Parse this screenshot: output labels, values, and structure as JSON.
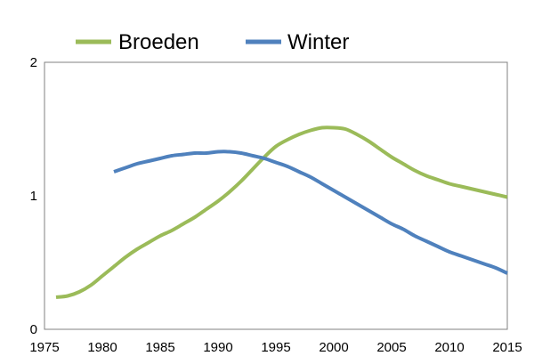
{
  "chart_data": {
    "type": "line",
    "title": "",
    "xlabel": "",
    "ylabel": "",
    "xlim": [
      1975,
      2015
    ],
    "ylim": [
      0,
      2
    ],
    "xticks": [
      1975,
      1980,
      1985,
      1990,
      1995,
      2000,
      2005,
      2010,
      2015
    ],
    "yticks": [
      0,
      1,
      2
    ],
    "grid": false,
    "legend": {
      "position": "top",
      "entries": [
        "Broeden",
        "Winter"
      ]
    },
    "series": [
      {
        "name": "Broeden",
        "color": "#9BBB59",
        "points": [
          [
            1976,
            0.24
          ],
          [
            1977,
            0.25
          ],
          [
            1978,
            0.28
          ],
          [
            1979,
            0.33
          ],
          [
            1980,
            0.4
          ],
          [
            1981,
            0.47
          ],
          [
            1982,
            0.54
          ],
          [
            1983,
            0.6
          ],
          [
            1984,
            0.65
          ],
          [
            1985,
            0.7
          ],
          [
            1986,
            0.74
          ],
          [
            1987,
            0.79
          ],
          [
            1988,
            0.84
          ],
          [
            1989,
            0.9
          ],
          [
            1990,
            0.96
          ],
          [
            1991,
            1.03
          ],
          [
            1992,
            1.11
          ],
          [
            1993,
            1.2
          ],
          [
            1994,
            1.29
          ],
          [
            1995,
            1.37
          ],
          [
            1996,
            1.42
          ],
          [
            1997,
            1.46
          ],
          [
            1998,
            1.49
          ],
          [
            1999,
            1.51
          ],
          [
            2000,
            1.51
          ],
          [
            2001,
            1.5
          ],
          [
            2002,
            1.46
          ],
          [
            2003,
            1.41
          ],
          [
            2004,
            1.35
          ],
          [
            2005,
            1.29
          ],
          [
            2006,
            1.24
          ],
          [
            2007,
            1.19
          ],
          [
            2008,
            1.15
          ],
          [
            2009,
            1.12
          ],
          [
            2010,
            1.09
          ],
          [
            2011,
            1.07
          ],
          [
            2012,
            1.05
          ],
          [
            2013,
            1.03
          ],
          [
            2014,
            1.01
          ],
          [
            2015,
            0.99
          ]
        ]
      },
      {
        "name": "Winter",
        "color": "#4F81BD",
        "points": [
          [
            1981,
            1.18
          ],
          [
            1982,
            1.21
          ],
          [
            1983,
            1.24
          ],
          [
            1984,
            1.26
          ],
          [
            1985,
            1.28
          ],
          [
            1986,
            1.3
          ],
          [
            1987,
            1.31
          ],
          [
            1988,
            1.32
          ],
          [
            1989,
            1.32
          ],
          [
            1990,
            1.33
          ],
          [
            1991,
            1.33
          ],
          [
            1992,
            1.32
          ],
          [
            1993,
            1.3
          ],
          [
            1994,
            1.28
          ],
          [
            1995,
            1.25
          ],
          [
            1996,
            1.22
          ],
          [
            1997,
            1.18
          ],
          [
            1998,
            1.14
          ],
          [
            1999,
            1.09
          ],
          [
            2000,
            1.04
          ],
          [
            2001,
            0.99
          ],
          [
            2002,
            0.94
          ],
          [
            2003,
            0.89
          ],
          [
            2004,
            0.84
          ],
          [
            2005,
            0.79
          ],
          [
            2006,
            0.75
          ],
          [
            2007,
            0.7
          ],
          [
            2008,
            0.66
          ],
          [
            2009,
            0.62
          ],
          [
            2010,
            0.58
          ],
          [
            2011,
            0.55
          ],
          [
            2012,
            0.52
          ],
          [
            2013,
            0.49
          ],
          [
            2014,
            0.46
          ],
          [
            2015,
            0.42
          ]
        ]
      }
    ]
  }
}
